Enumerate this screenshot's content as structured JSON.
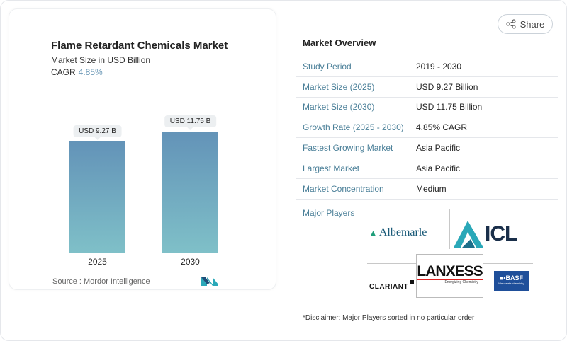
{
  "chart_data": {
    "type": "bar",
    "title": "Flame Retardant Chemicals Market",
    "subtitle": "Market Size in USD Billion",
    "cagr_label": "CAGR",
    "cagr_value": "4.85%",
    "categories": [
      "2025",
      "2030"
    ],
    "values": [
      9.27,
      11.75
    ],
    "data_labels": [
      "USD 9.27 B",
      "USD 11.75 B"
    ],
    "colors": [
      "#6393b8",
      "#7fc0c8"
    ],
    "source": "Source :  Mordor Intelligence"
  },
  "share_label": "Share",
  "overview": {
    "title": "Market Overview",
    "rows": [
      {
        "k": "Study Period",
        "v": "2019 - 2030"
      },
      {
        "k": "Market Size (2025)",
        "v": "USD 9.27 Billion"
      },
      {
        "k": "Market Size (2030)",
        "v": "USD 11.75 Billion"
      },
      {
        "k": "Growth Rate (2025 - 2030)",
        "v": "4.85% CAGR"
      },
      {
        "k": "Fastest Growing Market",
        "v": "Asia Pacific"
      },
      {
        "k": "Largest Market",
        "v": "Asia Pacific"
      },
      {
        "k": "Market Concentration",
        "v": "Medium"
      }
    ],
    "major_players_label": "Major Players",
    "players": [
      "Albemarle",
      "ICL",
      "CLARIANT",
      "LANXESS",
      "BASF"
    ],
    "lanxess_tagline": "Energizing Chemistry",
    "basf_tagline": "We create chemistry",
    "disclaimer": "*Disclaimer: Major Players sorted in no particular order"
  }
}
